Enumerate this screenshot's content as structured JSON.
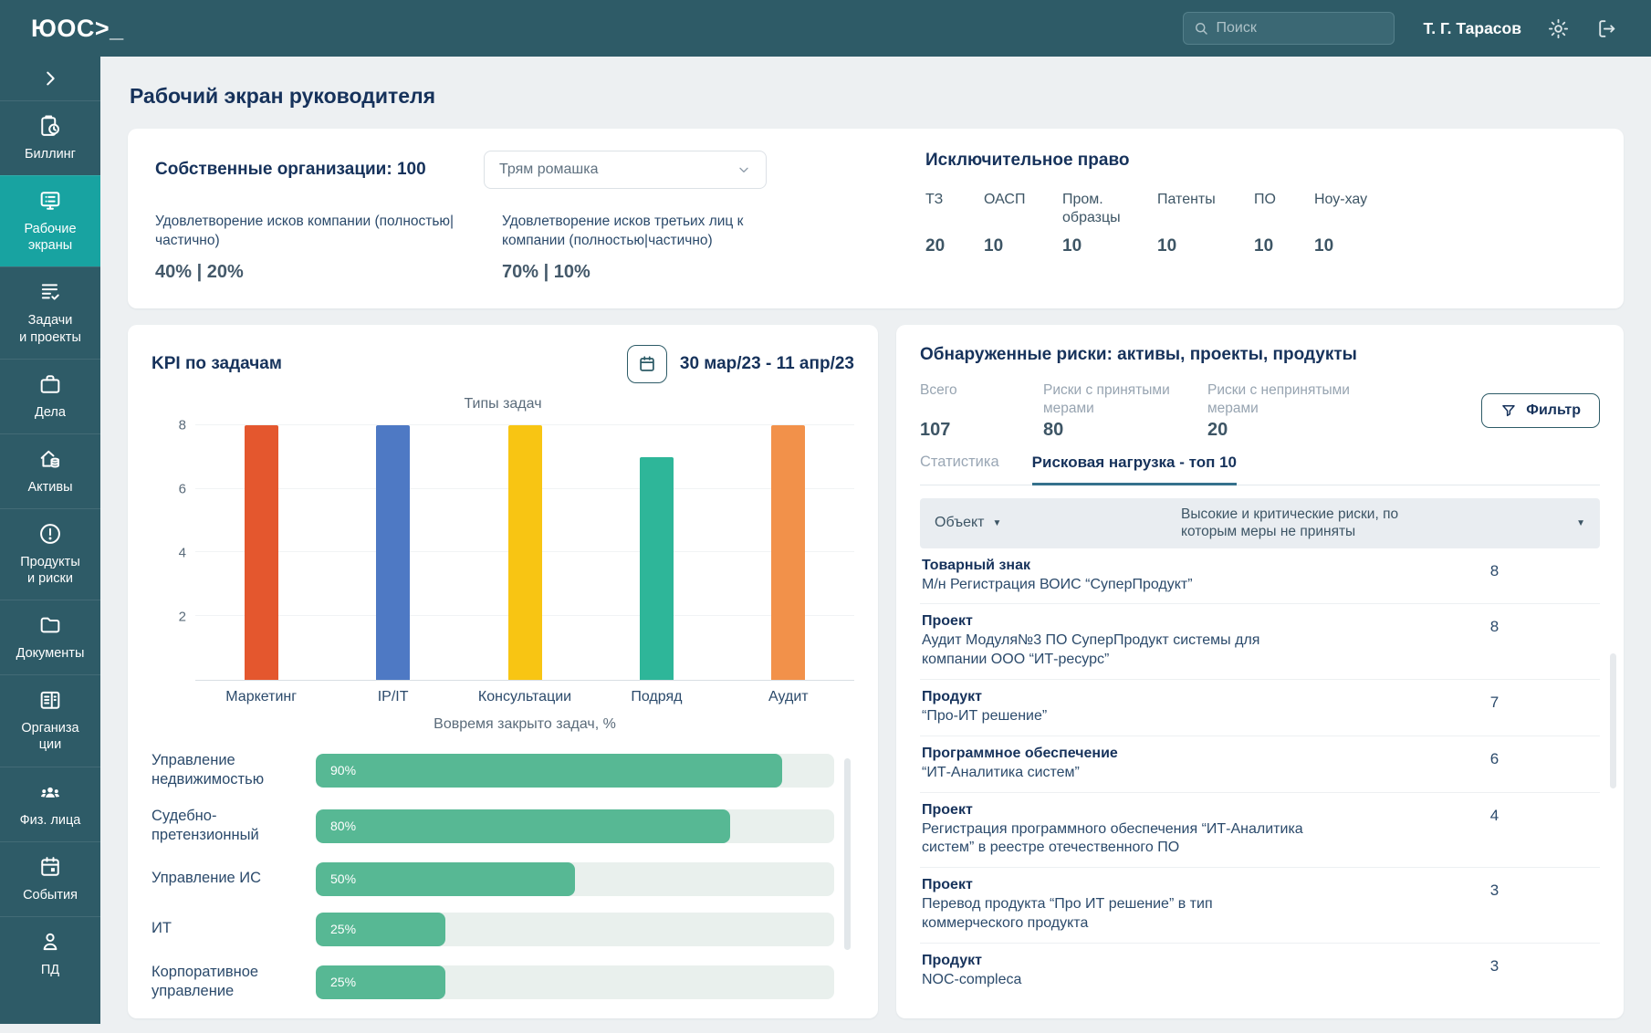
{
  "topbar": {
    "logo": "ЮОС>_",
    "search_placeholder": "Поиск",
    "user_name": "Т. Г. Тарасов",
    "icons": [
      "search-icon",
      "gear-icon",
      "logout-icon"
    ]
  },
  "sidebar": {
    "items": [
      {
        "label": "Биллинг",
        "icon": "clipboard-clock-icon"
      },
      {
        "label": "Рабочие\nэкраны",
        "icon": "monitor-list-icon",
        "active": true
      },
      {
        "label": "Задачи\nи проекты",
        "icon": "list-check-icon"
      },
      {
        "label": "Дела",
        "icon": "briefcase-icon"
      },
      {
        "label": "Активы",
        "icon": "house-coins-icon"
      },
      {
        "label": "Продукты\nи риски",
        "icon": "alert-circle-icon"
      },
      {
        "label": "Документы",
        "icon": "folder-icon"
      },
      {
        "label": "Организа\nции",
        "icon": "building-icon"
      },
      {
        "label": "Физ. лица",
        "icon": "people-icon"
      },
      {
        "label": "События",
        "icon": "calendar-icon"
      },
      {
        "label": "ПД",
        "icon": "person-icon"
      }
    ]
  },
  "page": {
    "title": "Рабочий экран руководителя"
  },
  "summary": {
    "own_orgs": "Собственные организации: 100",
    "org_select_value": "Трям ромашка",
    "claims": [
      {
        "label": "Удовлетворение исков компании (полностью|частично)",
        "value": "40% | 20%"
      },
      {
        "label": "Удовлетворение исков третьих лиц к компании (полностью|частично)",
        "value": "70% | 10%"
      }
    ],
    "exclusive_right": {
      "title": "Исключительное право",
      "items": [
        {
          "label": "ТЗ",
          "value": "20"
        },
        {
          "label": "ОАСП",
          "value": "10"
        },
        {
          "label": "Пром. образцы",
          "value": "10"
        },
        {
          "label": "Патенты",
          "value": "10"
        },
        {
          "label": "ПО",
          "value": "10"
        },
        {
          "label": "Ноу-хау",
          "value": "10"
        }
      ]
    }
  },
  "kpi": {
    "title": "KPI по задачам",
    "date_range": "30 мар/23 - 11 апр/23"
  },
  "chart_data": [
    {
      "type": "bar",
      "title": "Типы задач",
      "categories": [
        "Маркетинг",
        "IP/IT",
        "Консультации",
        "Подряд",
        "Аудит"
      ],
      "values": [
        8,
        8,
        8,
        7,
        8
      ],
      "colors": [
        "#E4572E",
        "#4E79C4",
        "#F8C513",
        "#2EB699",
        "#F2914A"
      ],
      "ylim": [
        0,
        8
      ],
      "yticks": [
        2,
        4,
        6,
        8
      ],
      "xlabel": "Вовремя закрыто задач, %",
      "grid": true,
      "legend": false
    },
    {
      "type": "bar-horizontal",
      "title": "Вовремя закрыто задач, %",
      "categories": [
        "Управление недвижимостью",
        "Судебно-претензионный",
        "Управление ИС",
        "ИТ",
        "Корпоративное управление"
      ],
      "values": [
        90,
        80,
        50,
        25,
        25
      ],
      "value_labels": [
        "90%",
        "80%",
        "50%",
        "25%",
        "25%"
      ],
      "color": "#57B894",
      "xlim": [
        0,
        100
      ]
    }
  ],
  "risks": {
    "title": "Обнаруженные риски: активы, проекты, продукты",
    "stats": [
      {
        "label": "Всего",
        "value": "107"
      },
      {
        "label": "Риски с принятыми мерами",
        "value": "80"
      },
      {
        "label": "Риски с непринятыми мерами",
        "value": "20"
      }
    ],
    "filter_label": "Фильтр",
    "tabs": [
      {
        "label": "Статистика",
        "active": false
      },
      {
        "label": "Рисковая нагрузка - топ 10",
        "active": true
      }
    ],
    "table": {
      "col_object": "Объект",
      "col_value": "Высокие и критические риски, по которым меры не приняты",
      "rows": [
        {
          "type": "Товарный знак",
          "desc": "М/н Регистрация ВОИС “СуперПродукт”",
          "value": "8"
        },
        {
          "type": "Проект",
          "desc": "Аудит Модуля№3 ПО СуперПродукт системы для компании ООО “ИТ-ресурс”",
          "value": "8"
        },
        {
          "type": "Продукт",
          "desc": "“Про-ИТ решение”",
          "value": "7"
        },
        {
          "type": "Программное обеспечение",
          "desc": "“ИТ-Аналитика систем”",
          "value": "6"
        },
        {
          "type": "Проект",
          "desc": "Регистрация программного обеспечения “ИТ-Аналитика систем” в реестре отечественного ПО",
          "value": "4"
        },
        {
          "type": "Проект",
          "desc": "Перевод продукта “Про ИТ решение” в тип коммерческого продукта",
          "value": "3"
        },
        {
          "type": "Продукт",
          "desc": "NOC-compleca",
          "value": "3"
        }
      ]
    }
  },
  "colors": {
    "topbar_bg": "#2E5B67",
    "sidebar_active": "#18A3A1",
    "title_navy": "#16325B",
    "green_bar": "#57B894",
    "tab_underline": "#35718C",
    "table_header_bg": "#E9EDF1"
  }
}
